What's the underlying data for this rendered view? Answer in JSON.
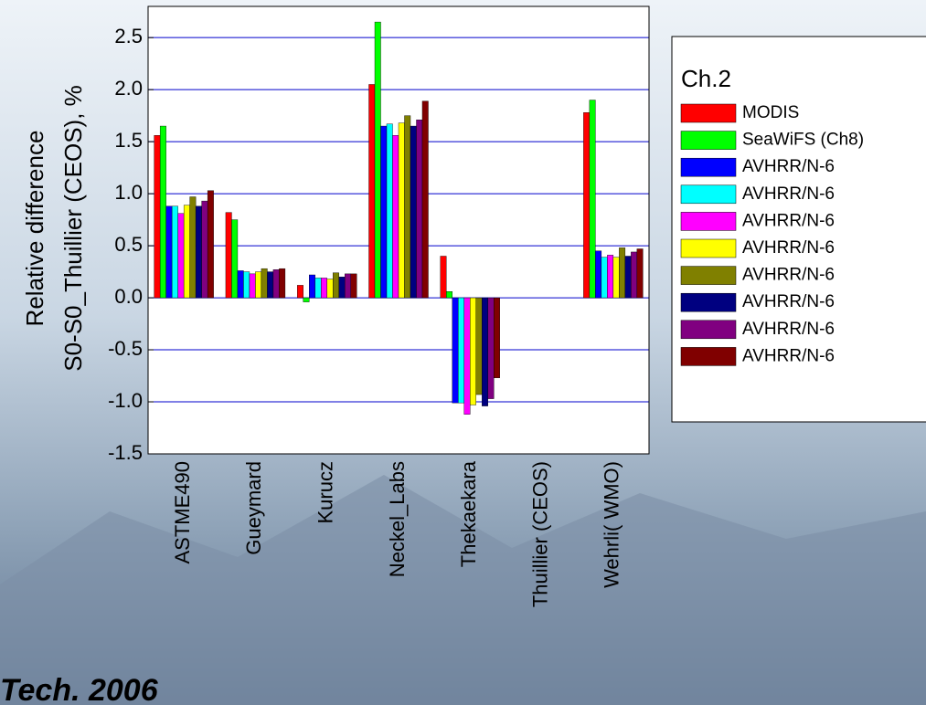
{
  "chart_data": {
    "type": "bar",
    "ylabel": [
      "Relative difference",
      "S0-S0_Thuillier (CEOS), %"
    ],
    "categories": [
      "ASTME490",
      "Gueymard",
      "Kurucz",
      "Neckel_Labs",
      "Thekaekara",
      "Thuillier (CEOS)",
      "Wehrli( WMO)"
    ],
    "legend_title": "Ch.2",
    "series": [
      {
        "name": "MODIS",
        "color": "#ff0000",
        "values": [
          1.56,
          0.82,
          0.12,
          2.05,
          0.4,
          0,
          1.78
        ]
      },
      {
        "name": "SeaWiFS (Ch8)",
        "color": "#00ff00",
        "values": [
          1.65,
          0.75,
          -0.04,
          2.65,
          0.06,
          0,
          1.9
        ]
      },
      {
        "name": "AVHRR/N-6",
        "color": "#0000ff",
        "values": [
          0.88,
          0.26,
          0.22,
          1.65,
          -1.01,
          0,
          0.45
        ]
      },
      {
        "name": "AVHRR/N-6",
        "color": "#00ffff",
        "values": [
          0.88,
          0.25,
          0.19,
          1.67,
          -1.01,
          0,
          0.39
        ]
      },
      {
        "name": "AVHRR/N-6",
        "color": "#ff00ff",
        "values": [
          0.81,
          0.23,
          0.19,
          1.56,
          -1.12,
          0,
          0.41
        ]
      },
      {
        "name": "AVHRR/N-6",
        "color": "#ffff00",
        "values": [
          0.89,
          0.25,
          0.18,
          1.68,
          -1.03,
          0,
          0.39
        ]
      },
      {
        "name": "AVHRR/N-6",
        "color": "#808000",
        "values": [
          0.97,
          0.28,
          0.24,
          1.75,
          -0.93,
          0,
          0.48
        ]
      },
      {
        "name": "AVHRR/N-6",
        "color": "#000080",
        "values": [
          0.88,
          0.25,
          0.2,
          1.65,
          -1.04,
          0,
          0.4
        ]
      },
      {
        "name": "AVHRR/N-6",
        "color": "#800080",
        "values": [
          0.93,
          0.27,
          0.23,
          1.71,
          -0.97,
          0,
          0.44
        ]
      },
      {
        "name": "AVHRR/N-6",
        "color": "#800000",
        "values": [
          1.03,
          0.28,
          0.23,
          1.89,
          -0.77,
          0,
          0.47
        ]
      }
    ],
    "ylim": [
      -1.5,
      2.8
    ],
    "yticks": [
      -1.5,
      {
        "value": -1,
        "label": "-1.0"
      },
      -0.5,
      {
        "value": 0,
        "label": "0.0"
      },
      0.5,
      {
        "value": 1,
        "label": "1.0"
      },
      1.5,
      {
        "value": 2,
        "label": "2.0"
      },
      2.5
    ],
    "grid": true,
    "grid_color": "#0000cc",
    "legend_position": "right"
  },
  "footer_text": "Tech. 2006"
}
